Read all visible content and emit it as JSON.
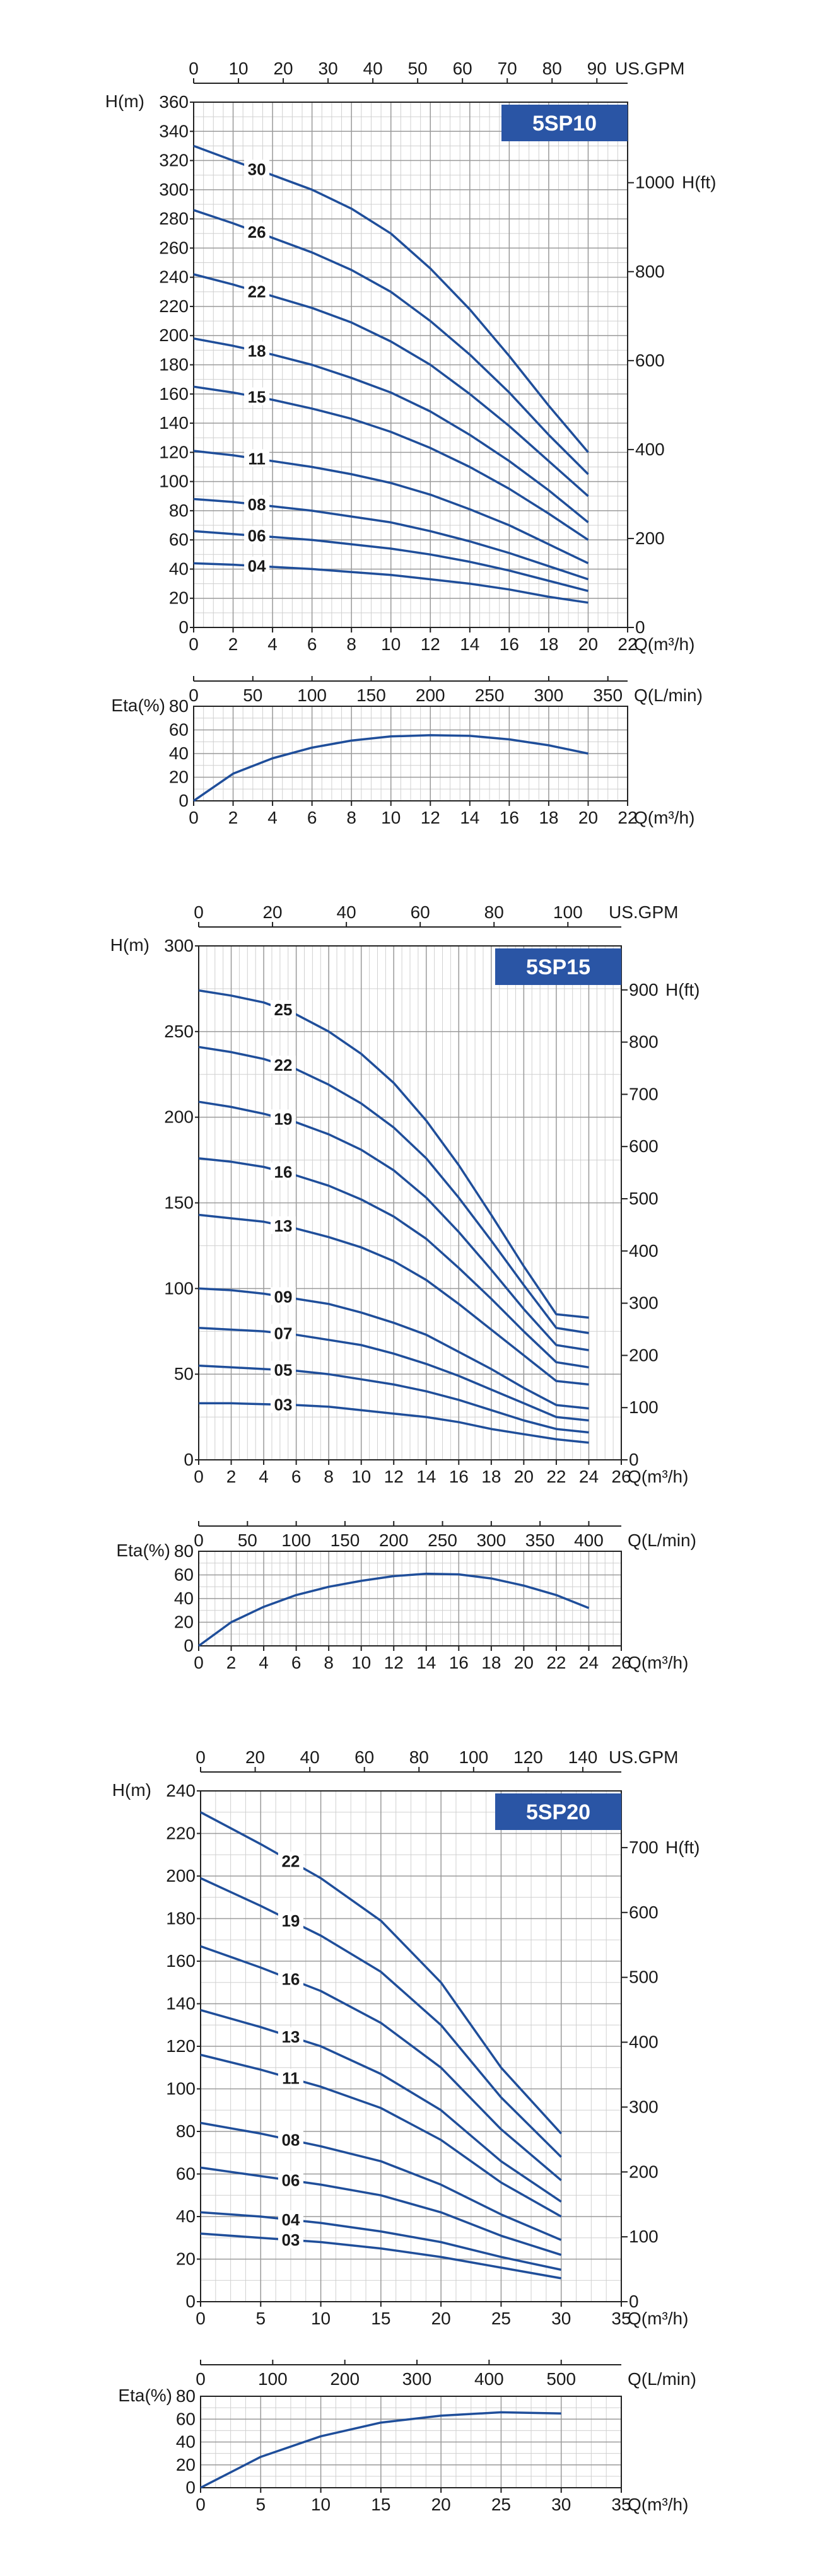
{
  "theme": {
    "curve_color": "#1f4e9a",
    "badge_color": "#2a55a5",
    "grid_major": "#9a9a9a",
    "grid_minor": "#d0d0d0",
    "axis_color": "#222222"
  },
  "chart_data": [
    {
      "type": "line",
      "title": "5SP10",
      "head_label": "H(m)",
      "head_ft_label": "H(ft)",
      "flow_label": "Q(m³/h)",
      "gpm_label": "US.GPM",
      "lmin_label": "Q(L/min)",
      "eta_label": "Eta(%)",
      "q_range": [
        0,
        22
      ],
      "q_ticks": [
        0,
        2,
        4,
        6,
        8,
        10,
        12,
        14,
        16,
        18,
        20,
        22
      ],
      "h_range": [
        0,
        360
      ],
      "h_ticks": [
        0,
        20,
        40,
        60,
        80,
        100,
        120,
        140,
        160,
        180,
        200,
        220,
        240,
        260,
        280,
        300,
        320,
        340,
        360
      ],
      "ft_ticks": [
        0,
        200,
        400,
        600,
        800,
        1000
      ],
      "gpm_ticks": [
        0,
        10,
        20,
        30,
        40,
        50,
        60,
        70,
        80,
        90
      ],
      "lmin_ticks": [
        0,
        50,
        100,
        150,
        200,
        250,
        300,
        350
      ],
      "eta_range": [
        0,
        80
      ],
      "eta_ticks": [
        0,
        20,
        40,
        60,
        80
      ],
      "q": [
        0,
        2,
        4,
        6,
        8,
        10,
        12,
        14,
        16,
        18,
        20
      ],
      "series": [
        {
          "name": "30",
          "label_q": 3.2,
          "values": [
            330,
            320,
            310,
            300,
            287,
            270,
            246,
            218,
            186,
            152,
            120
          ]
        },
        {
          "name": "26",
          "label_q": 3.2,
          "values": [
            286,
            277,
            267,
            257,
            245,
            230,
            210,
            187,
            161,
            132,
            105
          ]
        },
        {
          "name": "22",
          "label_q": 3.2,
          "values": [
            242,
            235,
            227,
            219,
            209,
            196,
            180,
            160,
            138,
            114,
            90
          ]
        },
        {
          "name": "18",
          "label_q": 3.2,
          "values": [
            198,
            193,
            187,
            180,
            171,
            161,
            148,
            132,
            114,
            94,
            72
          ]
        },
        {
          "name": "15",
          "label_q": 3.2,
          "values": [
            165,
            161,
            156,
            150,
            143,
            134,
            123,
            110,
            95,
            78,
            60
          ]
        },
        {
          "name": "11",
          "label_q": 3.2,
          "values": [
            121,
            118,
            114,
            110,
            105,
            99,
            91,
            81,
            70,
            57,
            44
          ]
        },
        {
          "name": "08",
          "label_q": 3.2,
          "values": [
            88,
            86,
            83,
            80,
            76,
            72,
            66,
            59,
            51,
            42,
            33
          ]
        },
        {
          "name": "06",
          "label_q": 3.2,
          "values": [
            66,
            64,
            62,
            60,
            57,
            54,
            50,
            45,
            39,
            32,
            25
          ]
        },
        {
          "name": "04",
          "label_q": 3.2,
          "values": [
            44,
            43,
            41.5,
            40,
            38,
            36,
            33,
            30,
            26,
            21,
            17
          ]
        }
      ],
      "eta_values": [
        0,
        23,
        36,
        45,
        51,
        54.5,
        55.5,
        55,
        52,
        47,
        40
      ]
    },
    {
      "type": "line",
      "title": "5SP15",
      "head_label": "H(m)",
      "head_ft_label": "H(ft)",
      "flow_label": "Q(m³/h)",
      "gpm_label": "US.GPM",
      "lmin_label": "Q(L/min)",
      "eta_label": "Eta(%)",
      "q_range": [
        0,
        26
      ],
      "q_ticks": [
        0,
        2,
        4,
        6,
        8,
        10,
        12,
        14,
        16,
        18,
        20,
        22,
        24,
        26
      ],
      "h_range": [
        0,
        300
      ],
      "h_ticks": [
        0,
        50,
        100,
        150,
        200,
        250,
        300
      ],
      "ft_ticks": [
        0,
        100,
        200,
        300,
        400,
        500,
        600,
        700,
        800,
        900
      ],
      "gpm_ticks": [
        0,
        20,
        40,
        60,
        80,
        100
      ],
      "lmin_ticks": [
        0,
        50,
        100,
        150,
        200,
        250,
        300,
        350,
        400
      ],
      "eta_range": [
        0,
        80
      ],
      "eta_ticks": [
        0,
        20,
        40,
        60,
        80
      ],
      "q": [
        0,
        2,
        4,
        6,
        8,
        10,
        12,
        14,
        16,
        18,
        20,
        22,
        24
      ],
      "series": [
        {
          "name": "25",
          "label_q": 5.2,
          "values": [
            274,
            271,
            267,
            260,
            250,
            237,
            220,
            198,
            172,
            143,
            113,
            85,
            83
          ]
        },
        {
          "name": "22",
          "label_q": 5.2,
          "values": [
            241,
            238,
            234,
            228,
            219,
            208,
            194,
            176,
            153,
            128,
            102,
            77,
            74
          ]
        },
        {
          "name": "19",
          "label_q": 5.2,
          "values": [
            209,
            206,
            202,
            197,
            190,
            181,
            169,
            153,
            133,
            111,
            88,
            67,
            64
          ]
        },
        {
          "name": "16",
          "label_q": 5.2,
          "values": [
            176,
            174,
            171,
            166,
            160,
            152,
            142,
            129,
            112,
            94,
            75,
            57,
            54
          ]
        },
        {
          "name": "13",
          "label_q": 5.2,
          "values": [
            143,
            141,
            139,
            135,
            130,
            124,
            116,
            105,
            91,
            76,
            61,
            46,
            44
          ]
        },
        {
          "name": "09",
          "label_q": 5.2,
          "values": [
            100,
            99,
            97,
            94,
            91,
            86,
            80,
            73,
            63,
            53,
            42,
            32,
            30
          ]
        },
        {
          "name": "07",
          "label_q": 5.2,
          "values": [
            77,
            76,
            75,
            73,
            70,
            67,
            62,
            56,
            49,
            41,
            33,
            25,
            23
          ]
        },
        {
          "name": "05",
          "label_q": 5.2,
          "values": [
            55,
            54,
            53,
            52,
            50,
            47,
            44,
            40,
            35,
            29,
            23,
            18,
            16
          ]
        },
        {
          "name": "03",
          "label_q": 5.2,
          "values": [
            33,
            33,
            32.5,
            32,
            31,
            29,
            27,
            25,
            22,
            18,
            15,
            12,
            10
          ]
        }
      ],
      "eta_values": [
        0,
        20,
        33,
        43,
        50,
        55,
        59,
        61,
        60.5,
        57,
        51,
        43,
        32
      ]
    },
    {
      "type": "line",
      "title": "5SP20",
      "head_label": "H(m)",
      "head_ft_label": "H(ft)",
      "flow_label": "Q(m³/h)",
      "gpm_label": "US.GPM",
      "lmin_label": "Q(L/min)",
      "eta_label": "Eta(%)",
      "q_range": [
        0,
        35
      ],
      "q_ticks": [
        0,
        5,
        10,
        15,
        20,
        25,
        30,
        35
      ],
      "h_range": [
        0,
        240
      ],
      "h_ticks": [
        0,
        20,
        40,
        60,
        80,
        100,
        120,
        140,
        160,
        180,
        200,
        220,
        240
      ],
      "ft_ticks": [
        0,
        100,
        200,
        300,
        400,
        500,
        600,
        700
      ],
      "gpm_ticks": [
        0,
        20,
        40,
        60,
        80,
        100,
        120,
        140
      ],
      "lmin_ticks": [
        0,
        100,
        200,
        300,
        400,
        500
      ],
      "eta_range": [
        0,
        80
      ],
      "eta_ticks": [
        0,
        20,
        40,
        60,
        80
      ],
      "q": [
        0,
        5,
        10,
        15,
        20,
        25,
        30
      ],
      "series": [
        {
          "name": "22",
          "label_q": 7.5,
          "values": [
            230,
            215,
            199,
            179,
            150,
            110,
            79
          ]
        },
        {
          "name": "19",
          "label_q": 7.5,
          "values": [
            199,
            186,
            172,
            155,
            130,
            96,
            68
          ]
        },
        {
          "name": "16",
          "label_q": 7.5,
          "values": [
            167,
            157,
            146,
            131,
            110,
            81,
            57
          ]
        },
        {
          "name": "13",
          "label_q": 7.5,
          "values": [
            137,
            129,
            120,
            107,
            90,
            66,
            47
          ]
        },
        {
          "name": "11",
          "label_q": 7.5,
          "values": [
            116,
            109,
            101,
            91,
            76,
            56,
            40
          ]
        },
        {
          "name": "08",
          "label_q": 7.5,
          "values": [
            84,
            79,
            73,
            66,
            55,
            41,
            29
          ]
        },
        {
          "name": "06",
          "label_q": 7.5,
          "values": [
            63,
            59,
            55,
            50,
            42,
            31,
            22
          ]
        },
        {
          "name": "04",
          "label_q": 7.5,
          "values": [
            42,
            40,
            37,
            33,
            28,
            21,
            15
          ]
        },
        {
          "name": "03",
          "label_q": 7.5,
          "values": [
            32,
            30,
            28,
            25,
            21,
            16,
            11
          ]
        }
      ],
      "eta_values": [
        0,
        27,
        45,
        57,
        63,
        66,
        65
      ]
    }
  ]
}
